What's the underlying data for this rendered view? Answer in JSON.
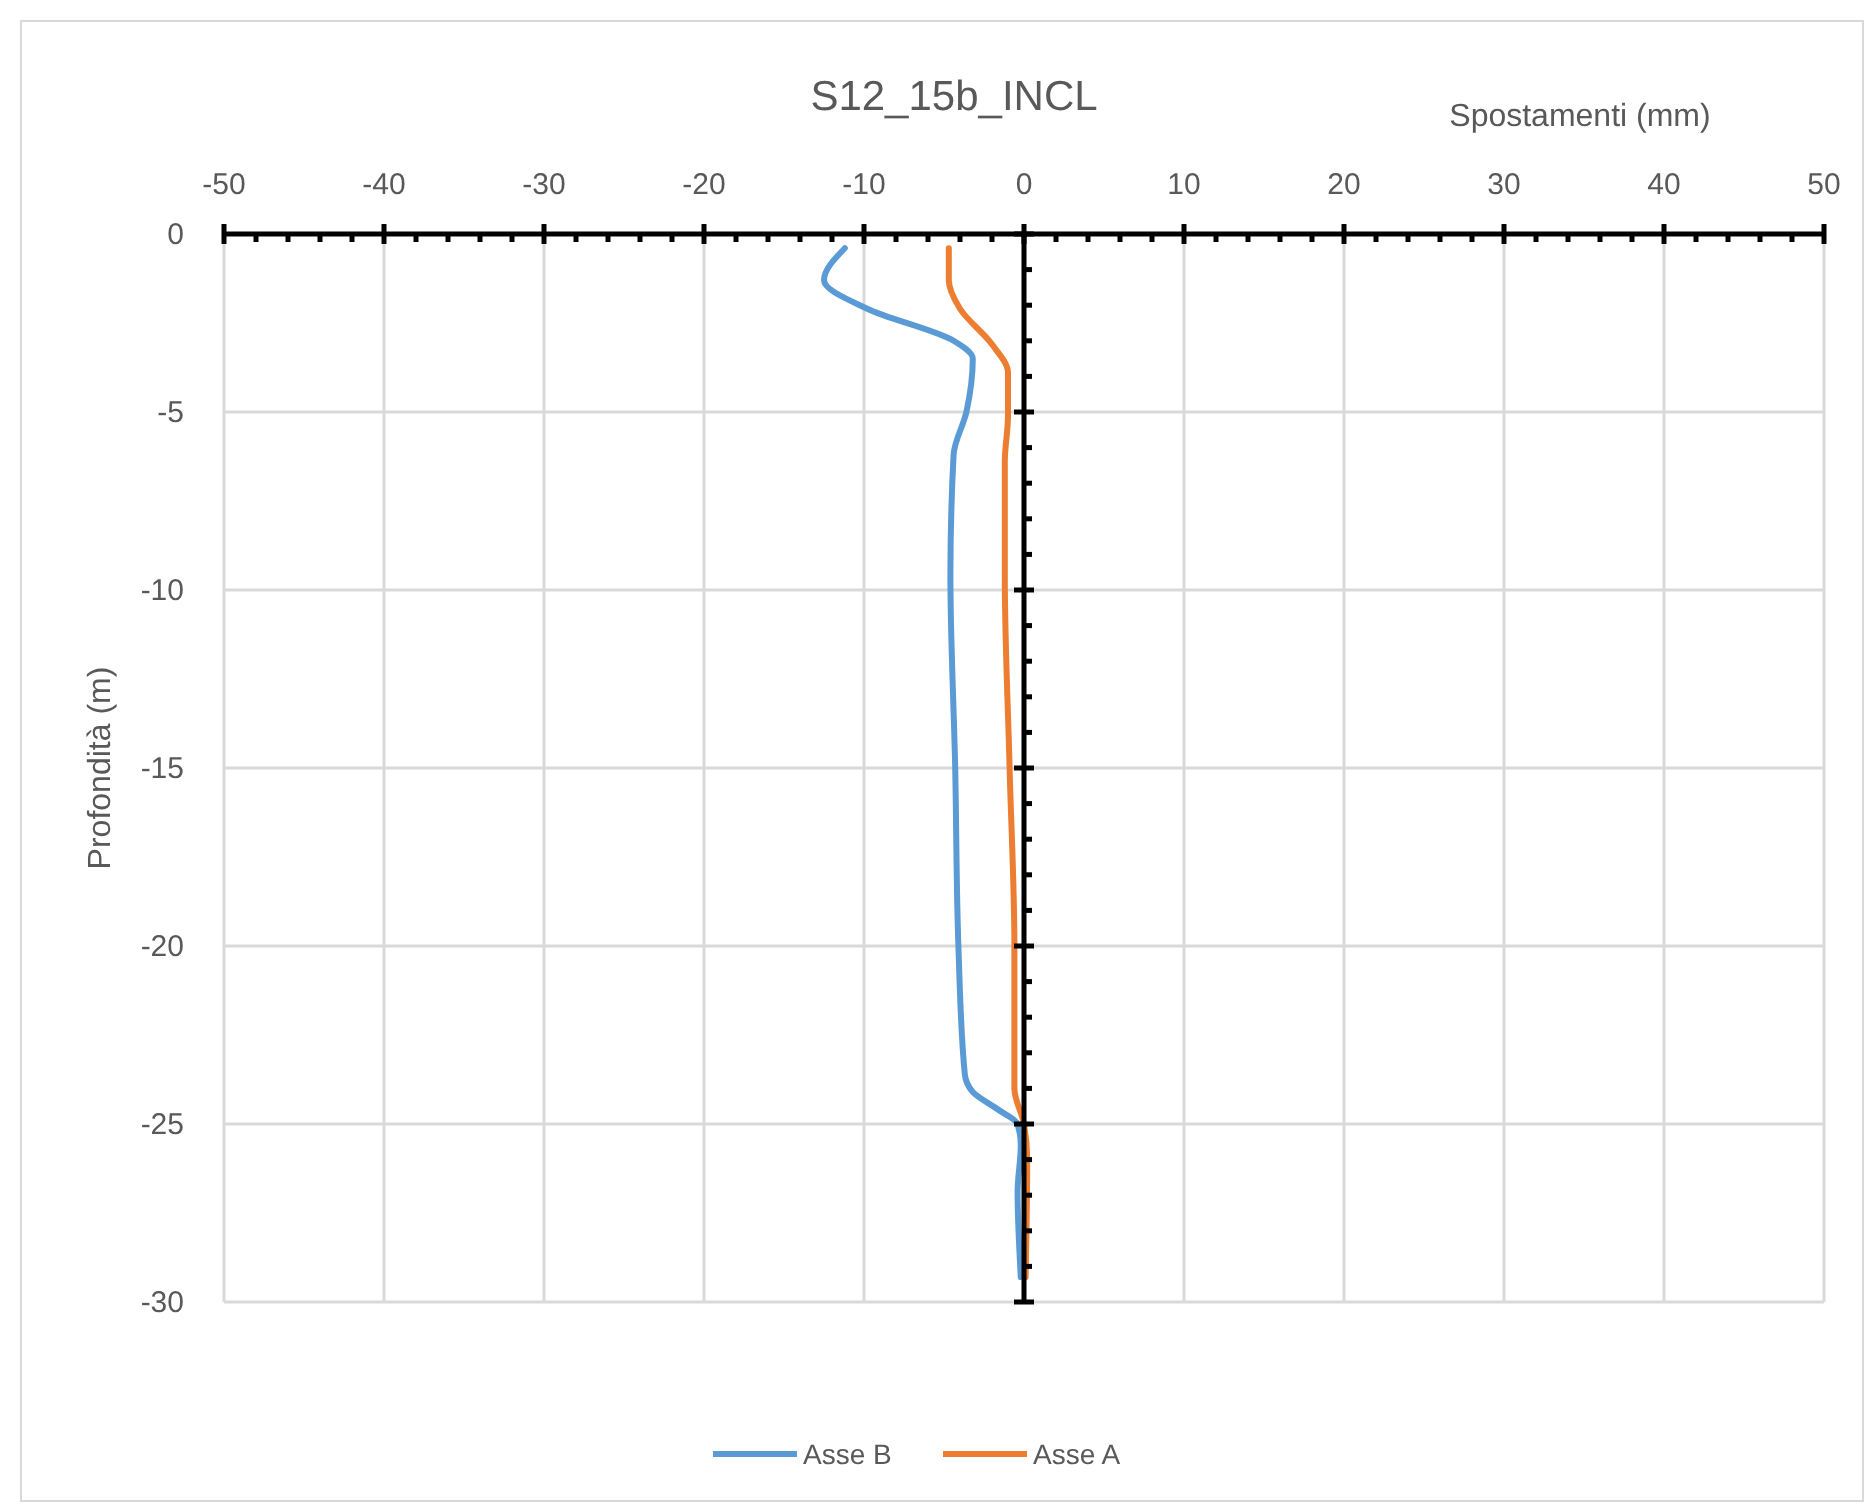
{
  "chart_data": {
    "type": "line",
    "title": "S12_15b_INCL",
    "xlabel": "Spostamenti (mm)",
    "ylabel": "Profondità (m)",
    "xlim": [
      -50,
      50
    ],
    "xticks": [
      -50,
      {
        "value": -48,
        "label": null
      },
      {
        "value": -46,
        "label": null
      },
      {
        "value": -44,
        "label": null
      },
      {
        "value": -42,
        "label": null
      },
      -40,
      {
        "value": -38,
        "label": null
      },
      {
        "value": -36,
        "label": null
      },
      {
        "value": -34,
        "label": null
      },
      {
        "value": -32,
        "label": null
      },
      -30,
      {
        "value": -28,
        "label": null
      },
      {
        "value": -26,
        "label": null
      },
      {
        "value": -24,
        "label": null
      },
      {
        "value": -22,
        "label": null
      },
      -20,
      {
        "value": -18,
        "label": null
      },
      {
        "value": -16,
        "label": null
      },
      {
        "value": -14,
        "label": null
      },
      {
        "value": -12,
        "label": null
      },
      -10,
      {
        "value": -8,
        "label": null
      },
      {
        "value": -6,
        "label": null
      },
      {
        "value": -4,
        "label": null
      },
      {
        "value": -2,
        "label": null
      },
      0,
      {
        "value": 2,
        "label": null
      },
      {
        "value": 4,
        "label": null
      },
      {
        "value": 6,
        "label": null
      },
      {
        "value": 8,
        "label": null
      },
      10,
      {
        "value": 12,
        "label": null
      },
      {
        "value": 14,
        "label": null
      },
      {
        "value": 16,
        "label": null
      },
      {
        "value": 18,
        "label": null
      },
      20,
      {
        "value": 22,
        "label": null
      },
      {
        "value": 24,
        "label": null
      },
      {
        "value": 26,
        "label": null
      },
      {
        "value": 28,
        "label": null
      },
      30,
      {
        "value": 32,
        "label": null
      },
      {
        "value": 34,
        "label": null
      },
      {
        "value": 36,
        "label": null
      },
      {
        "value": 38,
        "label": null
      },
      40,
      {
        "value": 42,
        "label": null
      },
      {
        "value": 44,
        "label": null
      },
      {
        "value": 46,
        "label": null
      },
      {
        "value": 48,
        "label": null
      },
      50
    ],
    "ylim": [
      -30,
      0
    ],
    "yticks": [
      0,
      {
        "value": -1,
        "label": null
      },
      {
        "value": -2,
        "label": null
      },
      {
        "value": -3,
        "label": null
      },
      {
        "value": -4,
        "label": null
      },
      -5,
      {
        "value": -6,
        "label": null
      },
      {
        "value": -7,
        "label": null
      },
      {
        "value": -8,
        "label": null
      },
      {
        "value": -9,
        "label": null
      },
      -10,
      {
        "value": -11,
        "label": null
      },
      {
        "value": -12,
        "label": null
      },
      {
        "value": -13,
        "label": null
      },
      {
        "value": -14,
        "label": null
      },
      -15,
      {
        "value": -16,
        "label": null
      },
      {
        "value": -17,
        "label": null
      },
      {
        "value": -18,
        "label": null
      },
      {
        "value": -19,
        "label": null
      },
      -20,
      {
        "value": -21,
        "label": null
      },
      {
        "value": -22,
        "label": null
      },
      {
        "value": -23,
        "label": null
      },
      {
        "value": -24,
        "label": null
      },
      -25,
      {
        "value": -26,
        "label": null
      },
      {
        "value": -27,
        "label": null
      },
      {
        "value": -28,
        "label": null
      },
      {
        "value": -29,
        "label": null
      },
      -30
    ],
    "grid": true,
    "legend": "bottom",
    "series": [
      {
        "name": "Asse B",
        "color": "#5b9bd5",
        "x": [
          -11.2,
          -12.5,
          -9.8,
          -4.4,
          -3.2,
          -3.6,
          -4.4,
          -4.6,
          -4.3,
          -4.1,
          -3.7,
          -3.2,
          -1.6,
          -0.4,
          -0.2,
          -0.4,
          -0.2
        ],
        "values": [
          -0.4,
          -1.3,
          -2.1,
          -3.0,
          -3.5,
          -5.0,
          -6.2,
          -9.6,
          -15,
          -20,
          -23.6,
          -24.1,
          -24.6,
          -25,
          -25.6,
          -26.9,
          -29.3
        ]
      },
      {
        "name": "Asse A",
        "color": "#ed7d31",
        "x": [
          -4.7,
          -4.7,
          -4.0,
          -2.0,
          -1.0,
          -1.0,
          -1.2,
          -1.2,
          -0.9,
          -0.6,
          -0.6,
          0,
          0.2,
          0.1
        ],
        "values": [
          -0.4,
          -1.3,
          -2.1,
          -3.1,
          -3.9,
          -5.1,
          -6.4,
          -9.6,
          -15,
          -20,
          -24,
          -25,
          -26,
          -29.3
        ]
      }
    ]
  }
}
